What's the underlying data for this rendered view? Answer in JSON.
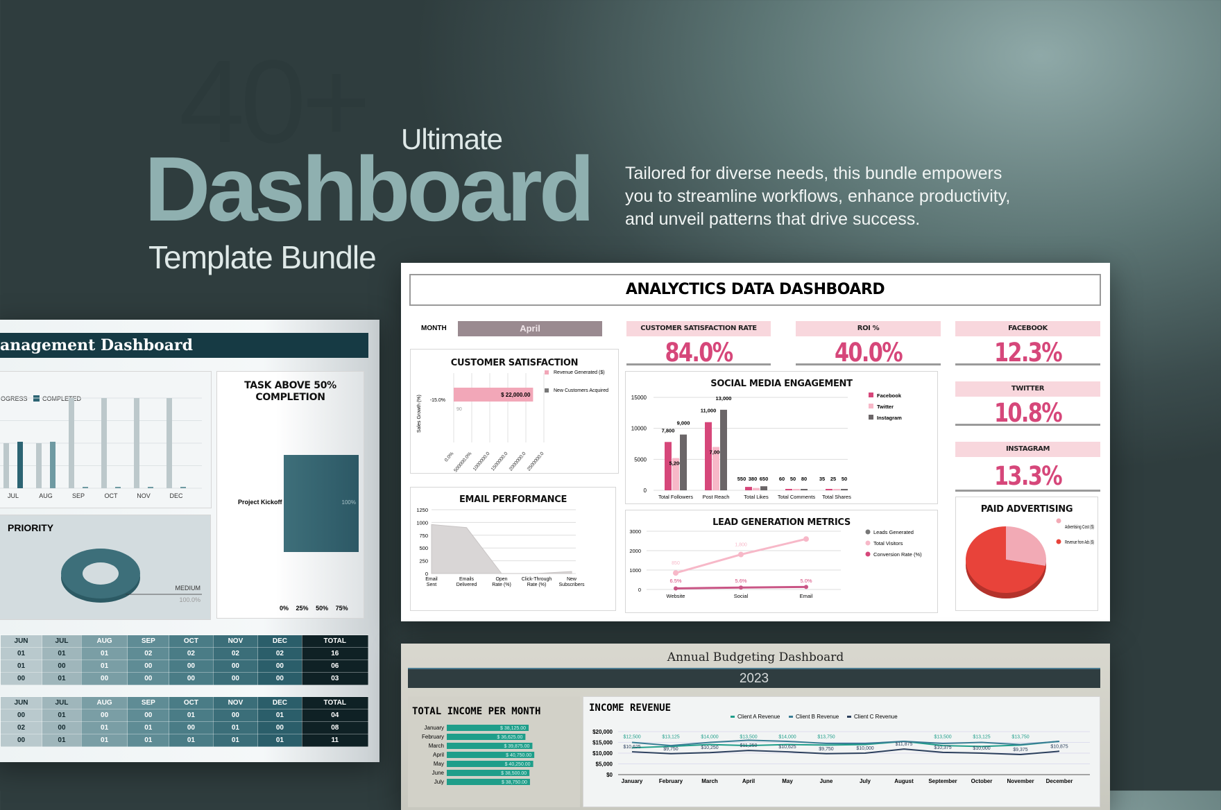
{
  "hero": {
    "big": "40+",
    "ultimate": "Ultimate",
    "dashboard": "Dashboard",
    "subtitle": "Template Bundle",
    "description": "Tailored for diverse needs, this bundle empowers you to streamline workflows, enhance productivity, and unveil patterns that drive success."
  },
  "analytics": {
    "title": "ANALYCTICS DATA DASHBOARD",
    "month_label": "MONTH",
    "month_value": "April",
    "kpis": [
      {
        "label": "CUSTOMER SATISFACTION RATE",
        "value": "84.0%"
      },
      {
        "label": "ROI %",
        "value": "40.0%"
      },
      {
        "label": "FACEBOOK",
        "value": "12.3%"
      },
      {
        "label": "TWITTER",
        "value": "10.8%"
      },
      {
        "label": "INSTAGRAM",
        "value": "13.3%"
      }
    ],
    "colors": {
      "pink": "#d6477a",
      "light_pink": "#f7b8c8",
      "gray": "#6b6668",
      "red": "#e8433a",
      "accent_bg": "#f8d7dd"
    }
  },
  "project": {
    "title": "anagement Dashboard",
    "legend": [
      "OGRESS",
      "COMPLETED"
    ],
    "task_title": "TASK ABOVE 50% COMPLETION",
    "priority_title": "PRIORITY",
    "tables": [
      {
        "header": [
          "JUN",
          "JUL",
          "AUG",
          "SEP",
          "OCT",
          "NOV",
          "DEC",
          "TOTAL"
        ],
        "rows": [
          [
            "01",
            "01",
            "01",
            "02",
            "02",
            "02",
            "02",
            "16"
          ],
          [
            "01",
            "00",
            "01",
            "00",
            "00",
            "00",
            "00",
            "06"
          ],
          [
            "00",
            "01",
            "00",
            "00",
            "00",
            "00",
            "00",
            "03"
          ]
        ]
      },
      {
        "header": [
          "JUN",
          "JUL",
          "AUG",
          "SEP",
          "OCT",
          "NOV",
          "DEC",
          "TOTAL"
        ],
        "rows": [
          [
            "00",
            "01",
            "00",
            "00",
            "01",
            "00",
            "01",
            "04"
          ],
          [
            "02",
            "00",
            "01",
            "01",
            "00",
            "01",
            "00",
            "08"
          ],
          [
            "00",
            "01",
            "01",
            "01",
            "01",
            "01",
            "01",
            "11"
          ]
        ]
      }
    ]
  },
  "budget": {
    "title": "Annual Budgeting Dashboard",
    "year": "2023"
  },
  "chart_data": [
    {
      "id": "customer-satisfaction",
      "type": "bar",
      "orientation": "horizontal",
      "title": "CUSTOMER SATISFACTION",
      "ylabel": "Sales Growth (%)",
      "categories": [
        "-15.0%"
      ],
      "series": [
        {
          "name": "Revenue Generated ($)",
          "values": [
            22000
          ],
          "labels": [
            "$ 22,000.00"
          ]
        },
        {
          "name": "New Customers Acquired",
          "values": [
            90
          ],
          "labels": [
            "90"
          ]
        }
      ],
      "xlim": [
        0,
        25000
      ],
      "xticks": [
        "0.0%",
        "500000.0%",
        "1000000.0",
        "1500000.0",
        "2000000.0",
        "2500000.0"
      ]
    },
    {
      "id": "social-media",
      "type": "bar",
      "title": "SOCIAL MEDIA ENGAGEMENT",
      "categories": [
        "Total Followers",
        "Post Reach",
        "Total Likes",
        "Total Comments",
        "Total Shares"
      ],
      "series": [
        {
          "name": "Facebook",
          "values": [
            7800,
            11000,
            550,
            60,
            35
          ]
        },
        {
          "name": "Twitter",
          "values": [
            5200,
            7000,
            380,
            50,
            25
          ]
        },
        {
          "name": "Instagram",
          "values": [
            9000,
            13000,
            650,
            80,
            50
          ]
        }
      ],
      "ylim": [
        0,
        15000
      ],
      "yticks": [
        0,
        5000,
        10000,
        15000
      ],
      "legend": "right"
    },
    {
      "id": "email-performance",
      "type": "area",
      "title": "EMAIL PERFORMANCE",
      "categories": [
        "Email Sent",
        "Emails Delivered",
        "Open Rate (%)",
        "Click-Through Rate (%)",
        "New Subscribers"
      ],
      "values": [
        960,
        900,
        0,
        0,
        40
      ],
      "ylim": [
        0,
        1250
      ],
      "yticks": [
        0,
        250,
        500,
        750,
        1000,
        1250
      ]
    },
    {
      "id": "lead-generation",
      "type": "line",
      "title": "LEAD GENERATION METRICS",
      "categories": [
        "Website",
        "Social",
        "Email"
      ],
      "series": [
        {
          "name": "Leads Generated",
          "values": [
            55,
            100,
            130
          ]
        },
        {
          "name": "Total Visitors",
          "values": [
            850,
            1800,
            2600
          ],
          "labels": [
            "850",
            "1,800",
            ""
          ]
        },
        {
          "name": "Conversion Rate (%)",
          "values": [
            6.5,
            5.6,
            5.0
          ],
          "labels": [
            "6.5%",
            "5.6%",
            "5.0%"
          ]
        }
      ],
      "ylim": [
        0,
        3000
      ],
      "yticks": [
        0,
        1000,
        2000,
        3000
      ],
      "legend": "right"
    },
    {
      "id": "paid-advertising",
      "type": "pie",
      "title": "PAID ADVERTISING",
      "categories": [
        "Advertising Cost ($)",
        "Revenue from Ads ($)"
      ],
      "values": [
        28,
        72
      ]
    },
    {
      "id": "project-tasks",
      "type": "bar",
      "categories": [
        "JUL",
        "AUG",
        "SEP",
        "OCT",
        "NOV",
        "DEC"
      ],
      "series": [
        {
          "name": "IN PROGRESS",
          "values": [
            2,
            2,
            4,
            4,
            4,
            4
          ]
        },
        {
          "name": "COMPLETED",
          "values": [
            2,
            2,
            0,
            0,
            0,
            0
          ]
        }
      ],
      "ylim": [
        0,
        4
      ]
    },
    {
      "id": "task-completion",
      "type": "bar",
      "orientation": "horizontal",
      "title": "TASK ABOVE 50% COMPLETION",
      "categories": [
        "Project Kickoff"
      ],
      "values": [
        100
      ],
      "labels": [
        "100%"
      ],
      "xticks": [
        "0%",
        "25%",
        "50%",
        "75%"
      ]
    },
    {
      "id": "priority",
      "type": "pie",
      "title": "PRIORITY",
      "categories": [
        "MEDIUM"
      ],
      "values": [
        100
      ],
      "labels": [
        "100.0%"
      ]
    },
    {
      "id": "total-income",
      "type": "bar",
      "orientation": "horizontal",
      "title": "TOTAL INCOME PER MONTH",
      "categories": [
        "January",
        "February",
        "March",
        "April",
        "May",
        "June",
        "July"
      ],
      "values": [
        38125,
        36625,
        39875,
        40750,
        40250,
        38500,
        38750
      ],
      "labels": [
        "$ 38,125.00",
        "$ 36,625.00",
        "$ 39,875.00",
        "$ 40,750.00",
        "$ 40,250.00",
        "$ 38,500.00",
        "$ 38,750.00"
      ]
    },
    {
      "id": "income-revenue",
      "type": "line",
      "title": "INCOME REVENUE",
      "categories": [
        "January",
        "February",
        "March",
        "April",
        "May",
        "June",
        "July",
        "August",
        "September",
        "October",
        "November",
        "December"
      ],
      "series": [
        {
          "name": "Client A Revenue",
          "color": "#1f9e8a",
          "values": [
            12500,
            13125,
            14000,
            13500,
            14000,
            13750,
            14000,
            15500,
            13500,
            13125,
            13750,
            15500
          ],
          "labels": [
            "$12,500",
            "$13,125",
            "$14,000",
            "$13,500",
            "$14,000",
            "$13,750",
            "",
            "",
            "$13,500",
            "$13,125",
            "$13,750",
            ""
          ]
        },
        {
          "name": "Client B Revenue",
          "color": "#3a7d94",
          "values": [
            15000,
            13500,
            15000,
            16000,
            15500,
            14500,
            14500,
            15500,
            14500,
            15000,
            14000,
            15500
          ]
        },
        {
          "name": "Client C Revenue",
          "color": "#2b3f5c",
          "values": [
            10625,
            9750,
            10250,
            11250,
            10625,
            9750,
            10000,
            11875,
            10375,
            10000,
            9375,
            10875
          ],
          "labels": [
            "$10,625",
            "$9,750",
            "$10,250",
            "$11,250",
            "$10,625",
            "$9,750",
            "$10,000",
            "$11,875",
            "$10,375",
            "$10,000",
            "$9,375",
            "$10,875"
          ]
        }
      ],
      "ylim": [
        0,
        20000
      ],
      "yticks": [
        "$0",
        "$5,000",
        "$10,000",
        "$15,000",
        "$20,000"
      ],
      "legend": "top"
    }
  ]
}
